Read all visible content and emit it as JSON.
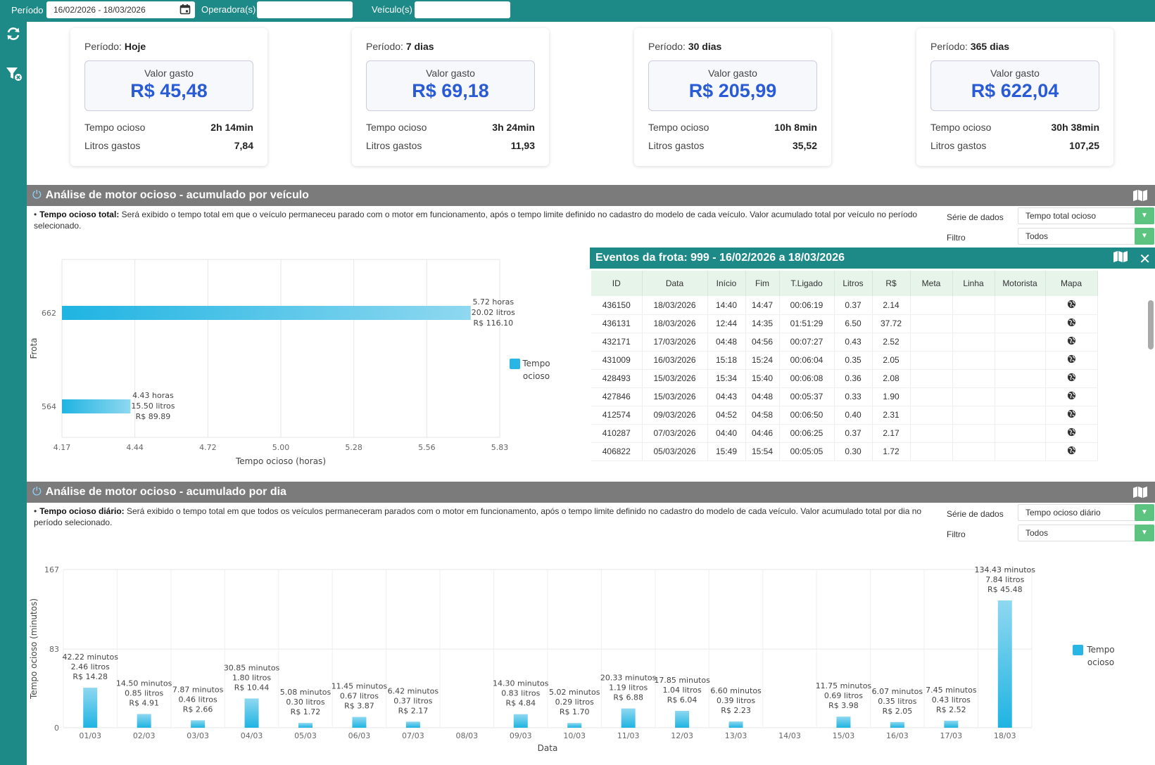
{
  "filters": {
    "periodo_label": "Período",
    "periodo_value": "16/02/2026 - 18/03/2026",
    "operadora_label": "Operadora(s)",
    "operadora_value": "",
    "veiculo_label": "Veículo(s)",
    "veiculo_value": ""
  },
  "cards": [
    {
      "periodo_label": "Período:",
      "periodo": "Hoje",
      "valor_label": "Valor gasto",
      "valor": "R$ 45,48",
      "tempo_label": "Tempo ocioso",
      "tempo": "2h 14min",
      "litros_label": "Litros gastos",
      "litros": "7,84"
    },
    {
      "periodo_label": "Período:",
      "periodo": "7 dias",
      "valor_label": "Valor gasto",
      "valor": "R$ 69,18",
      "tempo_label": "Tempo ocioso",
      "tempo": "3h 24min",
      "litros_label": "Litros gastos",
      "litros": "11,93"
    },
    {
      "periodo_label": "Período:",
      "periodo": "30 dias",
      "valor_label": "Valor gasto",
      "valor": "R$ 205,99",
      "tempo_label": "Tempo ocioso",
      "tempo": "10h 8min",
      "litros_label": "Litros gastos",
      "litros": "35,52"
    },
    {
      "periodo_label": "Período:",
      "periodo": "365 dias",
      "valor_label": "Valor gasto",
      "valor": "R$ 622,04",
      "tempo_label": "Tempo ocioso",
      "tempo": "30h 38min",
      "litros_label": "Litros gastos",
      "litros": "107,25"
    }
  ],
  "section1": {
    "title": "Análise de motor ocioso - acumulado por veículo",
    "desc_bold": "Tempo ocioso total:",
    "desc_text": " Será exibido o tempo total em que o veículo permaneceu parado com o motor em funcionamento, após o tempo limite definido no cadastro do modelo de cada veículo. Valor acumulado total por veículo no período selecionado.",
    "serie_label": "Série de dados",
    "serie_value": "Tempo total ocioso",
    "filtro_label": "Filtro",
    "filtro_value": "Todos"
  },
  "events": {
    "title": "Eventos da frota: 999 - 16/02/2026 a 18/03/2026",
    "columns": [
      "ID",
      "Data",
      "Início",
      "Fim",
      "T.Ligado",
      "Litros",
      "R$",
      "Meta",
      "Linha",
      "Motorista",
      "Mapa"
    ],
    "rows": [
      [
        "436150",
        "18/03/2026",
        "14:40",
        "14:47",
        "00:06:19",
        "0.37",
        "2.14"
      ],
      [
        "436131",
        "18/03/2026",
        "12:44",
        "14:35",
        "01:51:29",
        "6.50",
        "37.72"
      ],
      [
        "432171",
        "17/03/2026",
        "04:48",
        "04:56",
        "00:07:27",
        "0.43",
        "2.52"
      ],
      [
        "431009",
        "16/03/2026",
        "15:18",
        "15:24",
        "00:06:04",
        "0.35",
        "2.05"
      ],
      [
        "428493",
        "15/03/2026",
        "15:34",
        "15:40",
        "00:06:08",
        "0.36",
        "2.08"
      ],
      [
        "427846",
        "15/03/2026",
        "04:43",
        "04:48",
        "00:05:37",
        "0.33",
        "1.90"
      ],
      [
        "412574",
        "09/03/2026",
        "04:52",
        "04:58",
        "00:06:50",
        "0.40",
        "2.31"
      ],
      [
        "410287",
        "07/03/2026",
        "04:40",
        "04:46",
        "00:06:25",
        "0.37",
        "2.17"
      ],
      [
        "406822",
        "05/03/2026",
        "15:49",
        "15:54",
        "00:05:05",
        "0.30",
        "1.72"
      ]
    ]
  },
  "section2": {
    "title": "Análise de motor ocioso - acumulado por dia",
    "desc_bold": "Tempo ocioso diário:",
    "desc_text": " Será exibido o tempo total em que todos os veículos permaneceram parados com o motor em funcionamento, após o tempo limite definido no cadastro do modelo de cada veículo. Valor acumulado total por dia no período selecionado.",
    "serie_label": "Série de dados",
    "serie_value": "Tempo ocioso diário",
    "filtro_label": "Filtro",
    "filtro_value": "Todos"
  },
  "chart_data": [
    {
      "type": "bar",
      "orientation": "horizontal",
      "categories": [
        "662",
        "564"
      ],
      "values": [
        5.72,
        4.43
      ],
      "labels": [
        [
          "5.72 horas",
          "20.02 litros",
          "R$ 116.10"
        ],
        [
          "4.43 horas",
          "15.50 litros",
          "R$ 89.89"
        ]
      ],
      "xlabel": "Tempo ocioso (horas)",
      "ylabel": "Frota",
      "xlim": [
        4.17,
        5.83
      ],
      "xticks": [
        "4.17",
        "4.44",
        "4.72",
        "5.00",
        "5.28",
        "5.56",
        "5.83"
      ],
      "legend": [
        "Tempo",
        "ocioso"
      ],
      "legend_color": "#29b6e4",
      "grid": true
    },
    {
      "type": "bar",
      "categories": [
        "01/03",
        "02/03",
        "03/03",
        "04/03",
        "05/03",
        "06/03",
        "07/03",
        "08/03",
        "09/03",
        "10/03",
        "11/03",
        "12/03",
        "13/03",
        "14/03",
        "15/03",
        "16/03",
        "17/03",
        "18/03"
      ],
      "values": [
        42.22,
        14.5,
        7.87,
        30.85,
        5.08,
        11.45,
        6.42,
        0,
        14.3,
        5.02,
        20.33,
        17.85,
        6.6,
        0,
        11.75,
        6.07,
        7.45,
        134.43
      ],
      "labels": [
        [
          "42.22 minutos",
          "2.46 litros",
          "R$ 14.28"
        ],
        [
          "14.50 minutos",
          "0.85 litros",
          "R$ 4.91"
        ],
        [
          "7.87 minutos",
          "0.46 litros",
          "R$ 2.66"
        ],
        [
          "30.85 minutos",
          "1.80 litros",
          "R$ 10.44"
        ],
        [
          "5.08 minutos",
          "0.30 litros",
          "R$ 1.72"
        ],
        [
          "11.45 minutos",
          "0.67 litros",
          "R$ 3.87"
        ],
        [
          "6.42 minutos",
          "0.37 litros",
          "R$ 2.17"
        ],
        null,
        [
          "14.30 minutos",
          "0.83 litros",
          "R$ 4.84"
        ],
        [
          "5.02 minutos",
          "0.29 litros",
          "R$ 1.70"
        ],
        [
          "20.33 minutos",
          "1.19 litros",
          "R$ 6.88"
        ],
        [
          "17.85 minutos",
          "1.04 litros",
          "R$ 6.04"
        ],
        [
          "6.60 minutos",
          "0.39 litros",
          "R$ 2.23"
        ],
        null,
        [
          "11.75 minutos",
          "0.69 litros",
          "R$ 3.98"
        ],
        [
          "6.07 minutos",
          "0.35 litros",
          "R$ 2.05"
        ],
        [
          "7.45 minutos",
          "0.43 litros",
          "R$ 2.52"
        ],
        [
          "134.43 minutos",
          "7.84 litros",
          "R$ 45.48"
        ]
      ],
      "xlabel": "Data",
      "ylabel": "Tempo ocioso (minutos)",
      "ylim": [
        0,
        167
      ],
      "yticks": [
        "0",
        "83",
        "167"
      ],
      "legend": [
        "Tempo",
        "ocioso"
      ],
      "legend_color": "#29b6e4",
      "grid": true
    }
  ]
}
